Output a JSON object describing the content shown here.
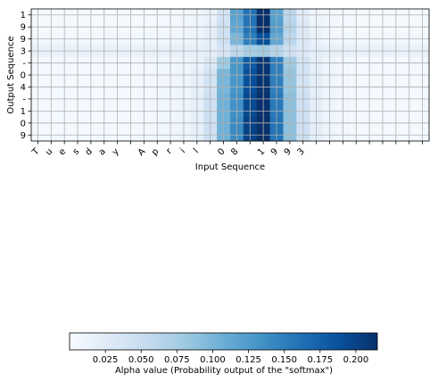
{
  "chart_data": {
    "type": "heatmap",
    "title": "",
    "xlabel": "Input Sequence",
    "ylabel": "Output Sequence",
    "x_tick_labels": [
      "T",
      "u",
      "e",
      "s",
      "d",
      "a",
      "y",
      " ",
      "A",
      "p",
      "r",
      "i",
      "l",
      " ",
      "0",
      "8",
      " ",
      "1",
      "9",
      "9",
      "3"
    ],
    "n_columns": 30,
    "y_tick_labels": [
      "1",
      "9",
      "9",
      "3",
      "-",
      "0",
      "4",
      "-",
      "1",
      "0",
      "9"
    ],
    "grid": true,
    "colormap": "Blues",
    "colorbar": {
      "label": "Alpha value (Probability output of the \"softmax\")",
      "ticks": [
        "0.025",
        "0.050",
        "0.075",
        "0.100",
        "0.125",
        "0.150",
        "0.175",
        "0.200"
      ],
      "tick_values": [
        0.025,
        0.05,
        0.075,
        0.1,
        0.125,
        0.15,
        0.175,
        0.2
      ],
      "range": [
        0.0,
        0.215
      ],
      "orientation": "horizontal"
    },
    "values": [
      [
        0.003,
        0.003,
        0.003,
        0.003,
        0.003,
        0.003,
        0.003,
        0.003,
        0.004,
        0.004,
        0.005,
        0.006,
        0.01,
        0.015,
        0.04,
        0.12,
        0.16,
        0.215,
        0.12,
        0.06,
        0.025,
        0.01,
        0.006,
        0.004,
        0.003,
        0.003,
        0.003,
        0.003,
        0.003,
        0.003
      ],
      [
        0.003,
        0.003,
        0.003,
        0.003,
        0.003,
        0.003,
        0.003,
        0.003,
        0.004,
        0.004,
        0.005,
        0.006,
        0.01,
        0.018,
        0.045,
        0.115,
        0.16,
        0.215,
        0.125,
        0.065,
        0.03,
        0.012,
        0.006,
        0.004,
        0.003,
        0.003,
        0.003,
        0.003,
        0.003,
        0.003
      ],
      [
        0.006,
        0.006,
        0.006,
        0.006,
        0.006,
        0.006,
        0.006,
        0.006,
        0.007,
        0.007,
        0.008,
        0.009,
        0.012,
        0.02,
        0.045,
        0.1,
        0.15,
        0.19,
        0.115,
        0.06,
        0.03,
        0.015,
        0.008,
        0.007,
        0.006,
        0.006,
        0.006,
        0.006,
        0.006,
        0.006
      ],
      [
        0.015,
        0.015,
        0.015,
        0.015,
        0.015,
        0.015,
        0.015,
        0.015,
        0.015,
        0.016,
        0.016,
        0.017,
        0.018,
        0.022,
        0.035,
        0.06,
        0.075,
        0.08,
        0.065,
        0.045,
        0.03,
        0.02,
        0.017,
        0.016,
        0.015,
        0.015,
        0.015,
        0.015,
        0.015,
        0.015
      ],
      [
        0.005,
        0.005,
        0.005,
        0.005,
        0.005,
        0.005,
        0.005,
        0.005,
        0.006,
        0.007,
        0.008,
        0.01,
        0.015,
        0.03,
        0.08,
        0.13,
        0.18,
        0.21,
        0.15,
        0.08,
        0.04,
        0.02,
        0.01,
        0.006,
        0.005,
        0.005,
        0.005,
        0.005,
        0.005,
        0.005
      ],
      [
        0.004,
        0.004,
        0.004,
        0.004,
        0.004,
        0.004,
        0.004,
        0.004,
        0.005,
        0.006,
        0.008,
        0.01,
        0.018,
        0.04,
        0.1,
        0.13,
        0.19,
        0.212,
        0.15,
        0.085,
        0.04,
        0.02,
        0.01,
        0.006,
        0.004,
        0.004,
        0.004,
        0.004,
        0.004,
        0.004
      ],
      [
        0.004,
        0.004,
        0.004,
        0.004,
        0.004,
        0.004,
        0.004,
        0.004,
        0.005,
        0.006,
        0.008,
        0.01,
        0.018,
        0.04,
        0.1,
        0.13,
        0.19,
        0.212,
        0.15,
        0.085,
        0.04,
        0.02,
        0.01,
        0.006,
        0.004,
        0.004,
        0.004,
        0.004,
        0.004,
        0.004
      ],
      [
        0.004,
        0.004,
        0.004,
        0.004,
        0.004,
        0.004,
        0.004,
        0.004,
        0.005,
        0.006,
        0.008,
        0.01,
        0.018,
        0.045,
        0.105,
        0.135,
        0.195,
        0.214,
        0.155,
        0.09,
        0.045,
        0.02,
        0.01,
        0.006,
        0.004,
        0.004,
        0.004,
        0.004,
        0.004,
        0.004
      ],
      [
        0.004,
        0.004,
        0.004,
        0.004,
        0.004,
        0.004,
        0.004,
        0.004,
        0.005,
        0.006,
        0.008,
        0.01,
        0.018,
        0.045,
        0.105,
        0.135,
        0.195,
        0.214,
        0.155,
        0.09,
        0.045,
        0.02,
        0.01,
        0.006,
        0.004,
        0.004,
        0.004,
        0.004,
        0.004,
        0.004
      ],
      [
        0.004,
        0.004,
        0.004,
        0.004,
        0.004,
        0.004,
        0.004,
        0.004,
        0.005,
        0.006,
        0.008,
        0.01,
        0.018,
        0.045,
        0.105,
        0.14,
        0.2,
        0.215,
        0.16,
        0.09,
        0.045,
        0.02,
        0.01,
        0.006,
        0.004,
        0.004,
        0.004,
        0.004,
        0.004,
        0.004
      ],
      [
        0.004,
        0.004,
        0.004,
        0.004,
        0.004,
        0.004,
        0.004,
        0.004,
        0.005,
        0.006,
        0.008,
        0.01,
        0.018,
        0.045,
        0.105,
        0.14,
        0.2,
        0.215,
        0.16,
        0.09,
        0.045,
        0.02,
        0.01,
        0.006,
        0.004,
        0.004,
        0.004,
        0.004,
        0.004,
        0.004
      ]
    ]
  }
}
